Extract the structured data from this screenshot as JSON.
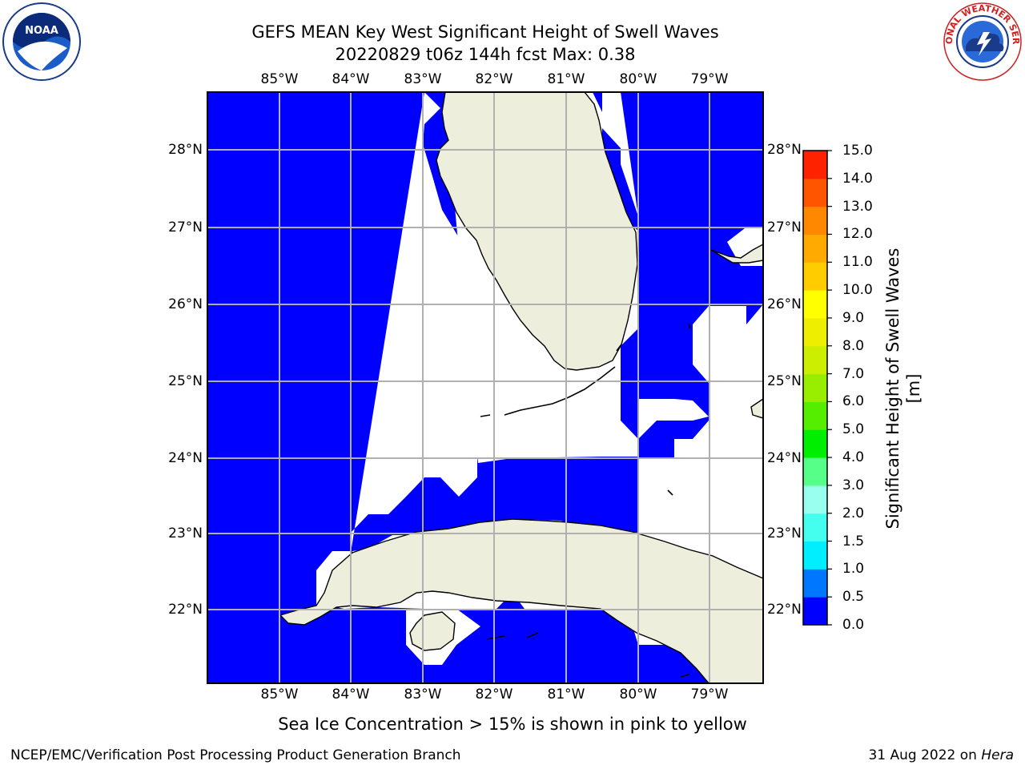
{
  "title": {
    "line1": "GEFS MEAN Key West Significant Height of Swell Waves",
    "line2": "20220829 t06z 144h fcst   Max: 0.38"
  },
  "logos": {
    "left": {
      "text": "NOAA",
      "icon": "noaa-logo"
    },
    "right": {
      "text": "NATIONAL WEATHER SERVICE",
      "icon": "nws-logo"
    }
  },
  "map": {
    "lon_labels": [
      "85°W",
      "84°W",
      "83°W",
      "82°W",
      "81°W",
      "80°W",
      "79°W"
    ],
    "lat_labels": [
      "28°N",
      "27°N",
      "26°N",
      "25°N",
      "24°N",
      "23°N",
      "22°N"
    ],
    "colors": {
      "ocean": "#0000ff",
      "land": "#eeeedd",
      "no_data": "#ffffff",
      "grid": "#b0b0b0"
    }
  },
  "colorbar": {
    "title": "Significant Height of Swell Waves [m]",
    "tick_labels": [
      "0.0",
      "0.5",
      "1.0",
      "1.5",
      "2.0",
      "3.0",
      "4.0",
      "5.0",
      "6.0",
      "7.0",
      "8.0",
      "9.0",
      "10.0",
      "11.0",
      "12.0",
      "13.0",
      "14.0",
      "15.0"
    ],
    "colors": [
      "#0000ff",
      "#0077ff",
      "#00eeff",
      "#44ffee",
      "#99ffee",
      "#55ff88",
      "#00ee00",
      "#55ee00",
      "#99ee00",
      "#ccee00",
      "#eeee00",
      "#ffff00",
      "#ffcc00",
      "#ffaa00",
      "#ff8800",
      "#ff5500",
      "#ff2200"
    ]
  },
  "caption": "Sea Ice Concentration > 15% is shown in pink to yellow",
  "footer": {
    "left": "NCEP/EMC/Verification Post Processing Product Generation Branch",
    "date": "31 Aug 2022 on ",
    "host": "Hera"
  }
}
